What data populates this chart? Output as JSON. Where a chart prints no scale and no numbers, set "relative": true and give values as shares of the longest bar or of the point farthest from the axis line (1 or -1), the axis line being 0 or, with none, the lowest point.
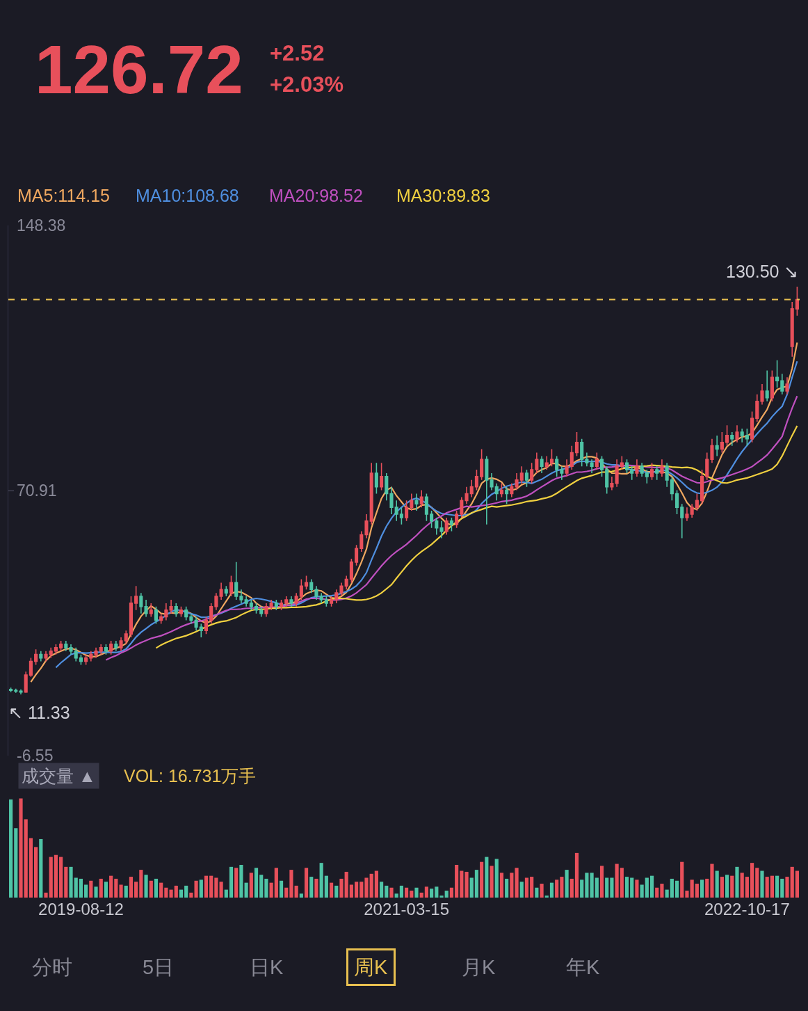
{
  "chart_data": [
    {
      "type": "candlestick",
      "categories": [
        null,
        null,
        null,
        null,
        null,
        null,
        null,
        null,
        null,
        null,
        null,
        null,
        null,
        null,
        "2019-08-12",
        null,
        null,
        null,
        null,
        null,
        null,
        null,
        null,
        null,
        null,
        null,
        null,
        null,
        null,
        null,
        null,
        null,
        null,
        null,
        null,
        null,
        null,
        null,
        null,
        null,
        null,
        null,
        null,
        null,
        null,
        null,
        null,
        null,
        null,
        null,
        null,
        null,
        null,
        null,
        null,
        null,
        null,
        null,
        null,
        null,
        null,
        null,
        null,
        null,
        null,
        null,
        null,
        null,
        null,
        null,
        null,
        null,
        null,
        null,
        null,
        null,
        null,
        null,
        null,
        "2021-03-15",
        null,
        null,
        null,
        null,
        null,
        null,
        null,
        null,
        null,
        null,
        null,
        null,
        null,
        null,
        null,
        null,
        null,
        null,
        null,
        null,
        null,
        null,
        null,
        null,
        null,
        null,
        null,
        null,
        null,
        null,
        null,
        null,
        null,
        null,
        null,
        null,
        null,
        null,
        null,
        null,
        null,
        null,
        null,
        null,
        null,
        null,
        null,
        null,
        null,
        null,
        null,
        null,
        null,
        null,
        null,
        null,
        null,
        null,
        null,
        null,
        null,
        null,
        null,
        null,
        null,
        null,
        null,
        "2022-10-17",
        null,
        null,
        null,
        null,
        null,
        null,
        null,
        null,
        null,
        null
      ],
      "tick_labels": "y",
      "ylim": [
        -6.55,
        148.38
      ],
      "yticks": [
        148.38,
        70.91,
        -6.55
      ],
      "grid": false,
      "legend": false,
      "ref_lines": [
        {
          "axis": "y",
          "value": 126.72,
          "label": null,
          "color": "#e8c050",
          "line_style": "dashed"
        }
      ],
      "annotations": [
        "126.72",
        "+2.52",
        "+2.03%",
        "130.50 ↘",
        "↖ 11.33"
      ],
      "series": [
        {
          "type": "candlestick",
          "ohlc": [
            [
              12.8,
              13.3,
              12.0,
              12.5
            ],
            [
              12.5,
              13.0,
              11.8,
              12.3
            ],
            [
              12.3,
              12.8,
              11.33,
              12.0
            ],
            [
              12.0,
              18,
              11.8,
              17
            ],
            [
              17,
              22,
              16.5,
              21
            ],
            [
              21,
              24.5,
              20,
              23
            ],
            [
              23,
              24,
              21,
              22
            ],
            [
              22,
              24,
              21,
              23
            ],
            [
              23,
              25,
              22,
              24
            ],
            [
              24,
              26,
              23,
              25
            ],
            [
              25,
              27,
              24,
              26
            ],
            [
              26,
              27,
              24,
              25
            ],
            [
              25,
              26,
              23,
              24
            ],
            [
              24,
              25,
              21,
              22
            ],
            [
              22,
              23,
              20,
              21
            ],
            [
              21,
              23,
              20,
              22
            ],
            [
              22,
              24,
              21,
              23
            ],
            [
              23,
              25,
              22,
              24
            ],
            [
              24,
              26,
              23,
              25
            ],
            [
              25,
              26,
              23,
              24
            ],
            [
              24,
              27,
              23,
              26
            ],
            [
              26,
              27,
              24,
              25
            ],
            [
              25,
              28,
              24,
              27
            ],
            [
              27,
              30,
              26,
              29
            ],
            [
              29,
              40,
              28,
              38
            ],
            [
              38,
              43,
              36,
              40
            ],
            [
              40,
              41,
              35,
              37
            ],
            [
              37,
              39,
              34,
              35
            ],
            [
              35,
              38,
              34,
              36
            ],
            [
              36,
              37,
              32,
              33
            ],
            [
              33,
              35,
              32,
              34
            ],
            [
              34,
              38,
              33,
              36
            ],
            [
              36,
              39,
              35,
              37
            ],
            [
              37,
              38,
              34,
              35
            ],
            [
              35,
              37,
              34,
              36
            ],
            [
              36,
              37,
              33,
              34
            ],
            [
              34,
              35,
              32,
              33
            ],
            [
              33,
              34,
              30,
              31
            ],
            [
              31,
              32,
              28,
              30
            ],
            [
              30,
              34,
              29,
              33
            ],
            [
              33,
              38,
              32,
              37
            ],
            [
              37,
              41,
              36,
              40
            ],
            [
              40,
              44,
              39,
              42
            ],
            [
              42,
              43,
              40,
              41
            ],
            [
              41,
              46,
              40,
              44
            ],
            [
              44,
              50,
              39,
              40
            ],
            [
              40,
              42,
              38,
              39
            ],
            [
              39,
              40,
              37,
              38
            ],
            [
              38,
              39,
              36,
              37
            ],
            [
              37,
              38,
              35,
              36
            ],
            [
              36,
              37,
              34,
              35
            ],
            [
              35,
              38,
              34,
              37
            ],
            [
              37,
              39,
              36,
              38
            ],
            [
              38,
              39,
              36,
              37
            ],
            [
              37,
              39,
              36,
              38
            ],
            [
              38,
              40,
              37,
              39
            ],
            [
              39,
              40,
              37,
              38
            ],
            [
              38,
              41,
              37,
              40
            ],
            [
              40,
              45,
              39,
              43
            ],
            [
              43,
              46,
              42,
              44
            ],
            [
              44,
              45,
              41,
              42
            ],
            [
              42,
              43,
              39,
              40
            ],
            [
              40,
              41,
              38,
              39
            ],
            [
              39,
              40,
              37,
              38
            ],
            [
              38,
              40,
              37,
              39
            ],
            [
              39,
              42,
              38,
              41
            ],
            [
              41,
              44,
              40,
              43
            ],
            [
              43,
              46,
              42,
              45
            ],
            [
              45,
              51,
              44,
              50
            ],
            [
              50,
              55,
              49,
              54
            ],
            [
              54,
              59,
              53,
              58
            ],
            [
              58,
              64,
              57,
              62
            ],
            [
              62,
              79,
              61,
              76
            ],
            [
              76,
              79,
              70,
              72
            ],
            [
              72,
              79,
              71,
              75
            ],
            [
              75,
              76,
              68,
              70
            ],
            [
              70,
              72,
              64,
              66
            ],
            [
              66,
              68,
              62,
              64
            ],
            [
              64,
              66,
              61,
              63
            ],
            [
              63,
              68,
              62,
              66
            ],
            [
              66,
              70,
              65,
              68
            ],
            [
              68,
              70,
              65,
              67
            ],
            [
              67,
              71,
              66,
              69
            ],
            [
              69,
              70,
              62,
              64
            ],
            [
              64,
              65,
              60,
              62
            ],
            [
              62,
              63,
              58,
              60
            ],
            [
              60,
              62,
              57,
              59
            ],
            [
              59,
              63,
              58,
              62
            ],
            [
              62,
              63,
              59,
              61
            ],
            [
              61,
              65,
              60,
              64
            ],
            [
              64,
              69,
              63,
              68
            ],
            [
              68,
              72,
              67,
              70
            ],
            [
              70,
              74,
              69,
              72
            ],
            [
              72,
              77,
              71,
              75
            ],
            [
              75,
              83,
              74,
              80
            ],
            [
              80,
              81,
              61,
              74
            ],
            [
              74,
              76,
              71,
              72
            ],
            [
              72,
              73,
              68,
              70
            ],
            [
              70,
              73,
              69,
              71
            ],
            [
              71,
              72,
              67,
              70
            ],
            [
              70,
              73,
              69,
              72
            ],
            [
              72,
              76,
              71,
              74
            ],
            [
              74,
              78,
              73,
              76
            ],
            [
              76,
              77,
              72,
              74
            ],
            [
              74,
              79,
              73,
              77
            ],
            [
              77,
              82,
              76,
              80
            ],
            [
              80,
              81,
              76,
              78
            ],
            [
              78,
              81,
              77,
              79
            ],
            [
              79,
              83,
              78,
              80
            ],
            [
              80,
              81,
              75,
              77
            ],
            [
              77,
              78,
              74,
              76
            ],
            [
              76,
              80,
              75,
              78
            ],
            [
              78,
              84,
              77,
              82
            ],
            [
              82,
              88,
              81,
              85
            ],
            [
              85,
              86,
              78,
              80
            ],
            [
              80,
              82,
              78,
              79
            ],
            [
              79,
              80,
              76,
              78
            ],
            [
              78,
              82,
              77,
              80
            ],
            [
              80,
              81,
              75,
              77
            ],
            [
              77,
              78,
              70,
              72
            ],
            [
              72,
              75,
              71,
              73
            ],
            [
              73,
              80,
              72,
              78
            ],
            [
              78,
              81,
              77,
              79
            ],
            [
              79,
              80,
              76,
              77
            ],
            [
              77,
              78,
              74,
              76
            ],
            [
              76,
              80,
              75,
              78
            ],
            [
              78,
              79,
              75,
              76
            ],
            [
              76,
              77,
              73,
              75
            ],
            [
              75,
              79,
              74,
              77
            ],
            [
              77,
              78,
              74,
              76
            ],
            [
              76,
              80,
              75,
              78
            ],
            [
              78,
              79,
              72,
              74
            ],
            [
              74,
              75,
              68,
              70
            ],
            [
              70,
              71,
              64,
              66
            ],
            [
              66,
              67,
              57,
              63
            ],
            [
              63,
              66,
              62,
              64
            ],
            [
              64,
              67,
              63,
              66
            ],
            [
              66,
              70,
              65,
              68
            ],
            [
              68,
              77,
              67,
              75
            ],
            [
              75,
              82,
              74,
              80
            ],
            [
              80,
              86,
              79,
              84
            ],
            [
              84,
              87,
              81,
              83
            ],
            [
              83,
              88,
              82,
              85
            ],
            [
              85,
              90,
              84,
              87
            ],
            [
              87,
              88,
              84,
              86
            ],
            [
              86,
              90,
              85,
              88
            ],
            [
              88,
              89,
              85,
              87
            ],
            [
              87,
              89,
              84,
              86
            ],
            [
              86,
              94,
              85,
              92
            ],
            [
              92,
              99,
              91,
              97
            ],
            [
              97,
              102,
              96,
              100
            ],
            [
              100,
              106,
              97,
              98
            ],
            [
              98,
              106,
              97,
              104
            ],
            [
              104,
              109,
              101,
              103
            ],
            [
              103,
              105,
              99,
              100
            ],
            [
              100,
              104,
              99,
              102
            ],
            [
              113,
              126,
              110,
              124
            ],
            [
              124,
              130.5,
              122,
              126.72
            ]
          ]
        },
        {
          "type": "line",
          "name": "MA5:114.15",
          "color": "#f0a860",
          "values": [
            null,
            null,
            null,
            null,
            15.0,
            17.1,
            19.0,
            21.2,
            22.6,
            23.4,
            24.0,
            24.6,
            24.8,
            24.4,
            23.6,
            22.8,
            22.4,
            22.4,
            23.0,
            23.6,
            24.4,
            24.8,
            25.4,
            26.2,
            29.0,
            31.8,
            34.2,
            35.8,
            37.2,
            36.2,
            35.0,
            34.8,
            35.2,
            35.0,
            35.6,
            35.6,
            35.0,
            33.8,
            32.8,
            32.2,
            32.8,
            34.2,
            36.4,
            38.6,
            40.8,
            41.4,
            41.2,
            40.4,
            39.6,
            38.0,
            37.0,
            36.6,
            36.6,
            36.6,
            37.0,
            37.8,
            38.0,
            38.4,
            39.6,
            40.8,
            41.4,
            41.8,
            41.6,
            40.6,
            39.6,
            39.4,
            40.0,
            41.2,
            43.6,
            46.6,
            50.0,
            53.8,
            60.0,
            64.4,
            68.6,
            71.0,
            71.8,
            69.4,
            67.6,
            65.8,
            65.4,
            65.6,
            66.6,
            66.8,
            66.0,
            64.4,
            62.8,
            61.4,
            60.8,
            61.2,
            62.8,
            65.0,
            67.0,
            69.8,
            73.0,
            74.2,
            74.6,
            74.2,
            73.4,
            71.4,
            71.0,
            71.4,
            72.6,
            73.2,
            74.6,
            76.2,
            77.0,
            77.6,
            78.8,
            78.8,
            78.0,
            78.0,
            78.6,
            79.6,
            80.2,
            80.8,
            80.8,
            80.4,
            78.8,
            77.2,
            76.0,
            76.0,
            75.8,
            75.8,
            76.6,
            77.6,
            77.2,
            76.4,
            76.4,
            76.4,
            76.4,
            76.0,
            75.0,
            72.8,
            70.2,
            67.4,
            65.8,
            65.4,
            67.2,
            70.6,
            74.6,
            78.0,
            81.4,
            83.8,
            85.0,
            85.8,
            86.6,
            86.8,
            87.8,
            90.0,
            92.4,
            94.6,
            98.2,
            100.4,
            101.0,
            101.4,
            106.6,
            114.15
          ]
        },
        {
          "type": "line",
          "name": "MA10:108.68",
          "color": "#4f8fe0",
          "values": [
            null,
            null,
            null,
            null,
            null,
            null,
            null,
            null,
            null,
            19.2,
            20.6,
            21.8,
            23.0,
            23.5,
            23.5,
            23.4,
            23.5,
            23.6,
            23.7,
            23.6,
            23.6,
            23.6,
            23.9,
            24.6,
            26.3,
            28.1,
            29.5,
            30.6,
            31.7,
            32.6,
            33.4,
            34.5,
            35.5,
            36.1,
            35.9,
            35.3,
            34.9,
            34.5,
            33.9,
            33.9,
            34.2,
            34.6,
            35.1,
            35.7,
            36.5,
            37.1,
            37.7,
            38.4,
            39.1,
            39.4,
            39.2,
            38.9,
            38.5,
            38.1,
            37.5,
            37.4,
            37.3,
            37.5,
            38.1,
            38.9,
            39.6,
            39.9,
            40.0,
            40.1,
            40.2,
            40.4,
            40.9,
            41.4,
            42.1,
            43.1,
            44.7,
            46.9,
            50.6,
            54.0,
            57.6,
            60.5,
            62.8,
            64.7,
            66.0,
            67.2,
            68.2,
            68.7,
            68.0,
            67.2,
            65.9,
            64.9,
            64.2,
            64.0,
            63.8,
            63.6,
            63.6,
            63.9,
            64.2,
            65.3,
            67.1,
            68.5,
            69.8,
            70.6,
            71.6,
            72.2,
            72.6,
            73.0,
            73.4,
            73.3,
            73.0,
            73.6,
            74.2,
            75.1,
            76.0,
            76.7,
            77.1,
            77.5,
            78.1,
            79.2,
            79.5,
            79.4,
            79.4,
            79.5,
            79.2,
            78.7,
            78.4,
            78.4,
            78.1,
            77.3,
            76.9,
            76.8,
            76.6,
            76.1,
            76.1,
            76.5,
            77.0,
            76.6,
            75.7,
            74.6,
            73.3,
            71.9,
            70.9,
            70.2,
            70.0,
            70.4,
            71.0,
            71.9,
            73.4,
            75.5,
            77.8,
            80.2,
            82.3,
            84.1,
            85.8,
            87.5,
            89.1,
            90.6,
            92.5,
            94.1,
            95.5,
            99.0,
            104.0,
            108.68
          ]
        },
        {
          "type": "line",
          "name": "MA20:98.52",
          "color": "#c050c0",
          "values": [
            null,
            null,
            null,
            null,
            null,
            null,
            null,
            null,
            null,
            null,
            null,
            null,
            null,
            null,
            null,
            null,
            null,
            null,
            null,
            21.4,
            22.1,
            22.7,
            23.5,
            24.1,
            24.9,
            25.8,
            26.5,
            27.1,
            27.7,
            28.1,
            28.5,
            29.1,
            29.7,
            30.4,
            31.1,
            31.7,
            32.2,
            32.6,
            32.8,
            33.3,
            33.8,
            34.6,
            35.3,
            35.9,
            36.2,
            36.2,
            36.3,
            36.5,
            36.5,
            36.7,
            36.7,
            36.8,
            36.8,
            36.9,
            37.0,
            37.3,
            37.5,
            38.0,
            38.6,
            39.2,
            39.4,
            39.4,
            39.3,
            39.1,
            38.9,
            38.9,
            39.1,
            39.5,
            40.1,
            41.0,
            42.2,
            43.4,
            45.3,
            47.1,
            48.9,
            50.5,
            51.9,
            53.1,
            54.1,
            55.2,
            56.5,
            57.8,
            59.3,
            60.6,
            61.8,
            62.7,
            63.5,
            64.4,
            64.9,
            65.4,
            65.9,
            66.3,
            66.1,
            66.3,
            66.5,
            66.7,
            67.0,
            67.3,
            67.7,
            67.9,
            68.1,
            68.5,
            68.8,
            69.3,
            70.1,
            71.1,
            72.0,
            72.9,
            73.8,
            74.5,
            74.9,
            75.3,
            75.8,
            76.3,
            76.3,
            76.5,
            76.8,
            77.3,
            77.6,
            77.7,
            77.8,
            78.0,
            78.1,
            78.3,
            78.2,
            78.1,
            78.0,
            77.8,
            77.7,
            77.6,
            77.7,
            77.5,
            76.9,
            76.0,
            75.1,
            74.4,
            73.8,
            73.2,
            73.1,
            73.5,
            74.0,
            74.3,
            74.6,
            75.1,
            75.6,
            76.1,
            76.6,
            77.2,
            77.9,
            79.0,
            80.1,
            81.3,
            83.0,
            84.8,
            86.7,
            91.0,
            95.0,
            98.52
          ]
        },
        {
          "type": "line",
          "name": "MA30:89.83",
          "color": "#f0d040",
          "values": [
            null,
            null,
            null,
            null,
            null,
            null,
            null,
            null,
            null,
            null,
            null,
            null,
            null,
            null,
            null,
            null,
            null,
            null,
            null,
            null,
            null,
            null,
            null,
            null,
            null,
            null,
            null,
            null,
            null,
            24.9,
            25.8,
            26.5,
            27.1,
            27.7,
            28.1,
            28.5,
            29.1,
            29.7,
            30.4,
            31.1,
            31.7,
            32.2,
            32.6,
            32.8,
            33.3,
            33.8,
            34.6,
            35.3,
            35.9,
            36.2,
            36.2,
            36.3,
            36.5,
            36.5,
            36.7,
            36.7,
            36.8,
            36.8,
            36.9,
            37.0,
            37.3,
            37.5,
            38.0,
            38.6,
            39.2,
            39.4,
            39.4,
            39.3,
            39.1,
            38.9,
            38.9,
            39.1,
            39.5,
            40.1,
            41.0,
            42.2,
            43.4,
            45.3,
            47.1,
            48.9,
            50.5,
            51.9,
            53.1,
            54.1,
            55.2,
            56.5,
            57.8,
            59.3,
            60.6,
            61.8,
            62.7,
            63.5,
            64.4,
            64.9,
            65.4,
            65.9,
            66.3,
            66.1,
            66.3,
            66.5,
            66.7,
            67.0,
            67.3,
            67.7,
            67.9,
            68.1,
            68.5,
            68.8,
            69.3,
            70.1,
            71.1,
            72.0,
            72.9,
            73.8,
            74.5,
            74.9,
            75.3,
            75.8,
            76.3,
            76.3,
            76.5,
            76.8,
            77.3,
            77.6,
            77.7,
            77.8,
            78.0,
            78.1,
            78.3,
            78.2,
            78.1,
            78.0,
            77.8,
            77.7,
            77.6,
            77.7,
            77.5,
            76.9,
            76.0,
            75.1,
            74.4,
            73.8,
            73.2,
            73.1,
            73.5,
            74.0,
            74.3,
            74.6,
            75.1,
            75.6,
            76.1,
            76.6,
            77.2,
            78.6,
            81.0,
            84.0,
            87.0,
            89.83
          ]
        }
      ]
    },
    {
      "type": "bar",
      "relative": true,
      "tick_labels": "x",
      "grid": false,
      "legend": false,
      "categories": [
        null,
        null,
        null,
        null,
        null,
        null,
        null,
        null,
        null,
        null,
        null,
        null,
        null,
        null,
        "2019-08-12",
        null,
        null,
        null,
        null,
        null,
        null,
        null,
        null,
        null,
        null,
        null,
        null,
        null,
        null,
        null,
        null,
        null,
        null,
        null,
        null,
        null,
        null,
        null,
        null,
        null,
        null,
        null,
        null,
        null,
        null,
        null,
        null,
        null,
        null,
        null,
        null,
        null,
        null,
        null,
        null,
        null,
        null,
        null,
        null,
        null,
        null,
        null,
        null,
        null,
        null,
        null,
        null,
        null,
        null,
        null,
        null,
        null,
        null,
        null,
        null,
        null,
        null,
        null,
        null,
        "2021-03-15",
        null,
        null,
        null,
        null,
        null,
        null,
        null,
        null,
        null,
        null,
        null,
        null,
        null,
        null,
        null,
        null,
        null,
        null,
        null,
        null,
        null,
        null,
        null,
        null,
        null,
        null,
        null,
        null,
        null,
        null,
        null,
        null,
        null,
        null,
        null,
        null,
        null,
        null,
        null,
        null,
        null,
        null,
        null,
        null,
        null,
        null,
        null,
        null,
        null,
        null,
        null,
        null,
        null,
        null,
        null,
        null,
        null,
        null,
        null,
        null,
        null,
        null,
        null,
        null,
        null,
        null,
        null,
        "2022-10-17",
        null,
        null,
        null,
        null,
        null,
        null,
        null,
        null,
        null,
        null
      ],
      "annotations": [
        "成交量 ▲",
        "VOL: 16.731万手",
        "分时",
        "5日",
        "日K",
        "周K",
        "月K",
        "年K"
      ],
      "values": [
        0.99,
        0.7,
        1.0,
        0.79,
        0.6,
        0.51,
        0.59,
        0.05,
        0.41,
        0.43,
        0.41,
        0.31,
        0.31,
        0.2,
        0.19,
        0.13,
        0.17,
        0.11,
        0.19,
        0.16,
        0.22,
        0.19,
        0.13,
        0.12,
        0.21,
        0.16,
        0.28,
        0.23,
        0.17,
        0.19,
        0.15,
        0.1,
        0.08,
        0.12,
        0.08,
        0.12,
        0.05,
        0.17,
        0.18,
        0.22,
        0.22,
        0.2,
        0.16,
        0.08,
        0.31,
        0.3,
        0.33,
        0.15,
        0.25,
        0.3,
        0.23,
        0.19,
        0.15,
        0.3,
        0.17,
        0.1,
        0.28,
        0.12,
        0.04,
        0.3,
        0.21,
        0.19,
        0.35,
        0.22,
        0.15,
        0.12,
        0.19,
        0.26,
        0.13,
        0.16,
        0.16,
        0.2,
        0.24,
        0.27,
        0.16,
        0.12,
        0.1,
        0.04,
        0.12,
        0.1,
        0.07,
        0.1,
        0.05,
        0.11,
        0.09,
        0.11,
        0.02,
        0.07,
        0.1,
        0.33,
        0.27,
        0.26,
        0.2,
        0.28,
        0.36,
        0.41,
        0.32,
        0.39,
        0.25,
        0.19,
        0.25,
        0.3,
        0.16,
        0.2,
        0.21,
        0.1,
        0.14,
        0.02,
        0.15,
        0.18,
        0.21,
        0.28,
        0.19,
        0.45,
        0.18,
        0.25,
        0.25,
        0.2,
        0.32,
        0.2,
        0.2,
        0.34,
        0.3,
        0.21,
        0.2,
        0.18,
        0.13,
        0.2,
        0.22,
        0.1,
        0.14,
        0.08,
        0.19,
        0.17,
        0.36,
        0.07,
        0.18,
        0.14,
        0.18,
        0.19,
        0.34,
        0.27,
        0.21,
        0.23,
        0.22,
        0.31,
        0.25,
        0.21,
        0.35,
        0.3,
        0.27,
        0.21,
        0.22,
        0.22,
        0.19,
        0.21,
        0.31,
        0.27
      ],
      "colors": [
        "#4fc4a6",
        "#4fc4a6",
        "#e8505b",
        "#e8505b",
        "#e8505b",
        "#e8505b",
        "#4fc4a6",
        "#e8505b",
        "#e8505b",
        "#e8505b",
        "#e8505b",
        "#e8505b",
        "#4fc4a6",
        "#4fc4a6",
        "#4fc4a6",
        "#4fc4a6",
        "#e8505b",
        "#4fc4a6",
        "#e8505b",
        "#4fc4a6",
        "#e8505b",
        "#e8505b",
        "#e8505b",
        "#4fc4a6",
        "#e8505b",
        "#e8505b",
        "#e8505b",
        "#4fc4a6",
        "#e8505b",
        "#4fc4a6",
        "#e8505b",
        "#e8505b",
        "#e8505b",
        "#e8505b",
        "#4fc4a6",
        "#4fc4a6",
        "#e8505b",
        "#e8505b",
        "#4fc4a6",
        "#e8505b",
        "#e8505b",
        "#e8505b",
        "#e8505b",
        "#4fc4a6",
        "#4fc4a6",
        "#e8505b",
        "#4fc4a6",
        "#4fc4a6",
        "#e8505b",
        "#4fc4a6",
        "#4fc4a6",
        "#4fc4a6",
        "#e8505b",
        "#e8505b",
        "#4fc4a6",
        "#e8505b",
        "#e8505b",
        "#e8505b",
        "#4fc4a6",
        "#e8505b",
        "#4fc4a6",
        "#e8505b",
        "#4fc4a6",
        "#4fc4a6",
        "#e8505b",
        "#4fc4a6",
        "#e8505b",
        "#e8505b",
        "#e8505b",
        "#e8505b",
        "#e8505b",
        "#e8505b",
        "#e8505b",
        "#e8505b",
        "#4fc4a6",
        "#4fc4a6",
        "#e8505b",
        "#4fc4a6",
        "#4fc4a6",
        "#e8505b",
        "#e8505b",
        "#4fc4a6",
        "#e8505b",
        "#e8505b",
        "#4fc4a6",
        "#4fc4a6",
        "#4fc4a6",
        "#4fc4a6",
        "#e8505b",
        "#e8505b",
        "#e8505b",
        "#e8505b",
        "#4fc4a6",
        "#4fc4a6",
        "#e8505b",
        "#4fc4a6",
        "#e8505b",
        "#4fc4a6",
        "#e8505b",
        "#4fc4a6",
        "#e8505b",
        "#e8505b",
        "#4fc4a6",
        "#e8505b",
        "#e8505b",
        "#4fc4a6",
        "#e8505b",
        "#4fc4a6",
        "#4fc4a6",
        "#e8505b",
        "#e8505b",
        "#4fc4a6",
        "#e8505b",
        "#e8505b",
        "#4fc4a6",
        "#4fc4a6",
        "#4fc4a6",
        "#4fc4a6",
        "#e8505b",
        "#4fc4a6",
        "#4fc4a6",
        "#e8505b",
        "#e8505b",
        "#4fc4a6",
        "#4fc4a6",
        "#e8505b",
        "#4fc4a6",
        "#4fc4a6",
        "#4fc4a6",
        "#e8505b",
        "#e8505b",
        "#4fc4a6",
        "#4fc4a6",
        "#4fc4a6",
        "#e8505b",
        "#e8505b",
        "#e8505b",
        "#e8505b",
        "#4fc4a6",
        "#e8505b",
        "#e8505b",
        "#4fc4a6",
        "#e8505b",
        "#4fc4a6",
        "#e8505b",
        "#4fc4a6",
        "#e8505b",
        "#e8505b",
        "#e8505b",
        "#e8505b",
        "#4fc4a6",
        "#e8505b",
        "#e8505b",
        "#4fc4a6",
        "#4fc4a6",
        "#e8505b",
        "#e8505b",
        "#e8505b"
      ]
    }
  ]
}
